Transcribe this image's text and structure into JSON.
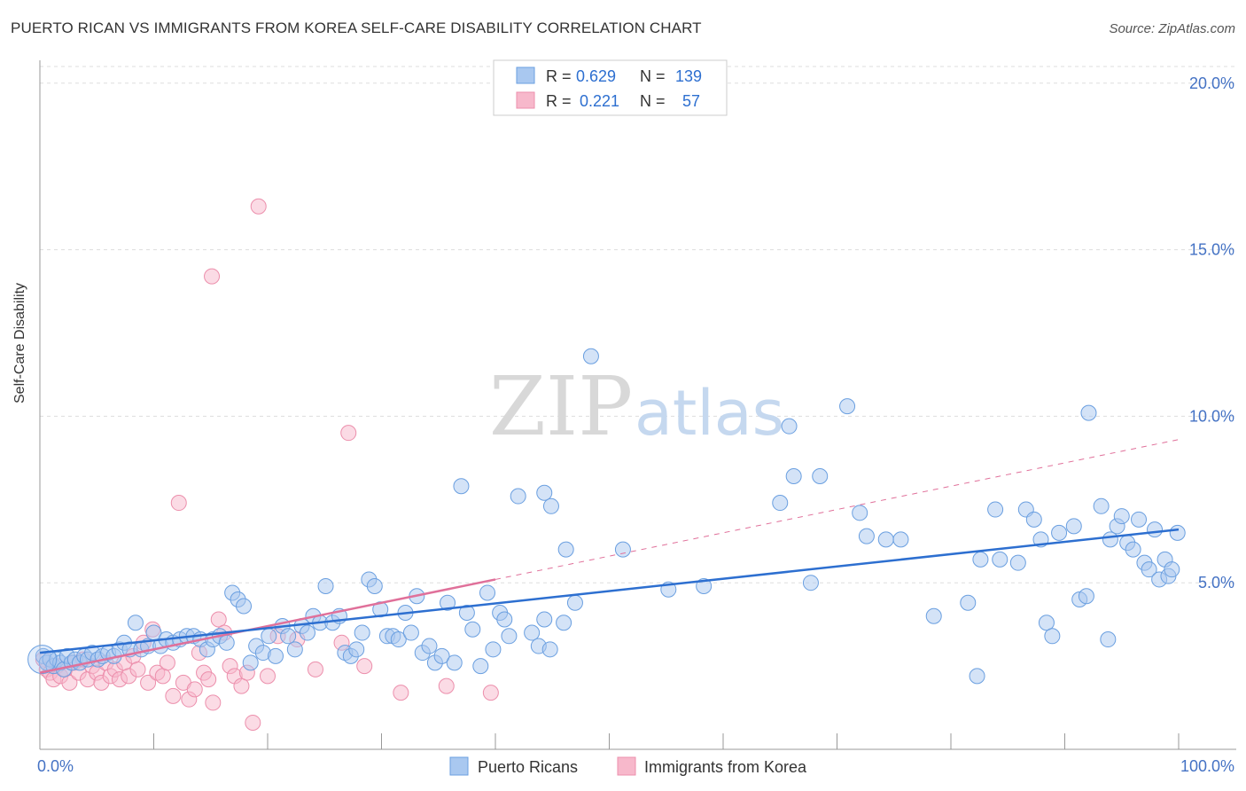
{
  "title": "PUERTO RICAN VS IMMIGRANTS FROM KOREA SELF-CARE DISABILITY CORRELATION CHART",
  "source": "Source: ZipAtlas.com",
  "watermark": {
    "part1": "ZIP",
    "part2": "atlas"
  },
  "colors": {
    "blue_fill": "#a9c8f0",
    "blue_stroke": "#6a9fe0",
    "blue_line": "#2d6fd0",
    "pink_fill": "#f7b8cb",
    "pink_stroke": "#ec8fac",
    "pink_line": "#e0709a",
    "grid": "#dddddd",
    "tick": "#4472c4"
  },
  "stats": {
    "r_label": "R =",
    "n_label": "N =",
    "rows": [
      {
        "series": "Puerto Ricans",
        "r": "0.629",
        "n": "139"
      },
      {
        "series": "Immigrants from Korea",
        "r": "0.221",
        "n": "57"
      }
    ]
  },
  "chart_data": {
    "type": "scatter",
    "title": "PUERTO RICAN VS IMMIGRANTS FROM KOREA SELF-CARE DISABILITY CORRELATION CHART",
    "xlabel": "",
    "ylabel": "Self-Care Disability",
    "xlim": [
      0,
      100
    ],
    "ylim": [
      0,
      20.5
    ],
    "x_tick_labels": [
      "0.0%",
      "100.0%"
    ],
    "y_ticks": [
      5,
      10,
      15,
      20
    ],
    "y_tick_labels": [
      "5.0%",
      "10.0%",
      "15.0%",
      "20.0%"
    ],
    "grid": true,
    "legend_position": "bottom",
    "series": [
      {
        "name": "Puerto Ricans",
        "color": "#a9c8f0",
        "trend": {
          "x": [
            0,
            100
          ],
          "y": [
            2.9,
            6.6
          ]
        },
        "points": [
          [
            0.3,
            2.8
          ],
          [
            0.6,
            2.6
          ],
          [
            0.9,
            2.7
          ],
          [
            1.2,
            2.5
          ],
          [
            1.5,
            2.7
          ],
          [
            1.8,
            2.6
          ],
          [
            2.1,
            2.4
          ],
          [
            2.4,
            2.8
          ],
          [
            2.8,
            2.6
          ],
          [
            3.1,
            2.7
          ],
          [
            3.5,
            2.6
          ],
          [
            3.9,
            2.8
          ],
          [
            4.2,
            2.7
          ],
          [
            4.6,
            2.9
          ],
          [
            5.1,
            2.7
          ],
          [
            5.5,
            2.8
          ],
          [
            6.0,
            2.9
          ],
          [
            6.5,
            2.8
          ],
          [
            7.0,
            3.0
          ],
          [
            7.4,
            3.2
          ],
          [
            7.9,
            3.0
          ],
          [
            8.4,
            3.8
          ],
          [
            8.9,
            3.0
          ],
          [
            9.5,
            3.1
          ],
          [
            10.0,
            3.5
          ],
          [
            10.6,
            3.1
          ],
          [
            11.1,
            3.3
          ],
          [
            11.7,
            3.2
          ],
          [
            12.3,
            3.3
          ],
          [
            12.9,
            3.4
          ],
          [
            13.5,
            3.4
          ],
          [
            14.1,
            3.3
          ],
          [
            14.7,
            3.0
          ],
          [
            15.2,
            3.3
          ],
          [
            15.8,
            3.4
          ],
          [
            16.4,
            3.2
          ],
          [
            16.9,
            4.7
          ],
          [
            17.4,
            4.5
          ],
          [
            17.9,
            4.3
          ],
          [
            18.5,
            2.6
          ],
          [
            19.0,
            3.1
          ],
          [
            19.6,
            2.9
          ],
          [
            20.1,
            3.4
          ],
          [
            20.7,
            2.8
          ],
          [
            21.3,
            3.7
          ],
          [
            21.8,
            3.4
          ],
          [
            22.4,
            3.0
          ],
          [
            23.0,
            3.7
          ],
          [
            23.5,
            3.5
          ],
          [
            24.0,
            4.0
          ],
          [
            24.6,
            3.8
          ],
          [
            25.1,
            4.9
          ],
          [
            25.7,
            3.8
          ],
          [
            26.3,
            4.0
          ],
          [
            26.8,
            2.9
          ],
          [
            27.3,
            2.8
          ],
          [
            27.8,
            3.0
          ],
          [
            28.3,
            3.5
          ],
          [
            28.9,
            5.1
          ],
          [
            29.4,
            4.9
          ],
          [
            29.9,
            4.2
          ],
          [
            30.5,
            3.4
          ],
          [
            31.0,
            3.4
          ],
          [
            31.5,
            3.3
          ],
          [
            32.1,
            4.1
          ],
          [
            32.6,
            3.5
          ],
          [
            33.1,
            4.6
          ],
          [
            33.6,
            2.9
          ],
          [
            34.2,
            3.1
          ],
          [
            34.7,
            2.6
          ],
          [
            35.3,
            2.8
          ],
          [
            35.8,
            4.4
          ],
          [
            36.4,
            2.6
          ],
          [
            37.0,
            7.9
          ],
          [
            37.5,
            4.1
          ],
          [
            38.0,
            3.6
          ],
          [
            38.7,
            2.5
          ],
          [
            39.3,
            4.7
          ],
          [
            39.8,
            3.0
          ],
          [
            40.4,
            4.1
          ],
          [
            40.8,
            3.9
          ],
          [
            41.2,
            3.4
          ],
          [
            42.0,
            7.6
          ],
          [
            43.2,
            3.5
          ],
          [
            43.8,
            3.1
          ],
          [
            44.3,
            3.9
          ],
          [
            44.8,
            3.0
          ],
          [
            44.3,
            7.7
          ],
          [
            44.9,
            7.3
          ],
          [
            46.2,
            6.0
          ],
          [
            47.0,
            4.4
          ],
          [
            46.0,
            3.8
          ],
          [
            48.4,
            11.8
          ],
          [
            51.2,
            6.0
          ],
          [
            55.2,
            4.8
          ],
          [
            58.3,
            4.9
          ],
          [
            65.0,
            7.4
          ],
          [
            65.8,
            9.7
          ],
          [
            66.2,
            8.2
          ],
          [
            68.5,
            8.2
          ],
          [
            67.7,
            5.0
          ],
          [
            70.9,
            10.3
          ],
          [
            72.0,
            7.1
          ],
          [
            72.6,
            6.4
          ],
          [
            74.3,
            6.3
          ],
          [
            75.6,
            6.3
          ],
          [
            78.5,
            4.0
          ],
          [
            81.5,
            4.4
          ],
          [
            82.6,
            5.7
          ],
          [
            82.3,
            2.2
          ],
          [
            83.9,
            7.2
          ],
          [
            84.3,
            5.7
          ],
          [
            85.9,
            5.6
          ],
          [
            86.6,
            7.2
          ],
          [
            87.3,
            6.9
          ],
          [
            87.9,
            6.3
          ],
          [
            88.4,
            3.8
          ],
          [
            88.9,
            3.4
          ],
          [
            89.5,
            6.5
          ],
          [
            90.8,
            6.7
          ],
          [
            91.3,
            4.5
          ],
          [
            91.9,
            4.6
          ],
          [
            92.1,
            10.1
          ],
          [
            93.2,
            7.3
          ],
          [
            93.8,
            3.3
          ],
          [
            94.0,
            6.3
          ],
          [
            94.6,
            6.7
          ],
          [
            95.0,
            7.0
          ],
          [
            95.5,
            6.2
          ],
          [
            96.0,
            6.0
          ],
          [
            96.5,
            6.9
          ],
          [
            97.0,
            5.6
          ],
          [
            97.4,
            5.4
          ],
          [
            97.9,
            6.6
          ],
          [
            98.3,
            5.1
          ],
          [
            98.8,
            5.7
          ],
          [
            99.1,
            5.2
          ],
          [
            99.4,
            5.4
          ],
          [
            99.9,
            6.5
          ]
        ]
      },
      {
        "name": "Immigrants from Korea",
        "color": "#f7b8cb",
        "trend": {
          "x": [
            0,
            40
          ],
          "y": [
            2.3,
            5.1
          ]
        },
        "trend_dashed": {
          "x": [
            40,
            100
          ],
          "y": [
            5.1,
            9.3
          ]
        },
        "points": [
          [
            0.3,
            2.7
          ],
          [
            0.6,
            2.4
          ],
          [
            0.9,
            2.3
          ],
          [
            1.2,
            2.1
          ],
          [
            1.5,
            2.5
          ],
          [
            1.8,
            2.2
          ],
          [
            2.2,
            2.4
          ],
          [
            2.6,
            2.0
          ],
          [
            3.0,
            2.6
          ],
          [
            3.4,
            2.3
          ],
          [
            3.8,
            2.7
          ],
          [
            4.2,
            2.1
          ],
          [
            4.6,
            2.5
          ],
          [
            5.0,
            2.3
          ],
          [
            5.4,
            2.0
          ],
          [
            5.8,
            2.6
          ],
          [
            6.2,
            2.2
          ],
          [
            6.6,
            2.4
          ],
          [
            7.0,
            2.1
          ],
          [
            7.4,
            2.6
          ],
          [
            7.8,
            2.2
          ],
          [
            8.2,
            2.8
          ],
          [
            8.6,
            2.4
          ],
          [
            9.1,
            3.2
          ],
          [
            9.5,
            2.0
          ],
          [
            9.9,
            3.6
          ],
          [
            10.3,
            2.3
          ],
          [
            10.8,
            2.2
          ],
          [
            11.2,
            2.6
          ],
          [
            11.7,
            1.6
          ],
          [
            12.2,
            7.4
          ],
          [
            12.6,
            2.0
          ],
          [
            13.1,
            1.5
          ],
          [
            13.6,
            1.8
          ],
          [
            14.0,
            2.9
          ],
          [
            14.4,
            2.3
          ],
          [
            14.8,
            2.1
          ],
          [
            15.2,
            1.4
          ],
          [
            15.7,
            3.9
          ],
          [
            16.2,
            3.5
          ],
          [
            16.7,
            2.5
          ],
          [
            17.1,
            2.2
          ],
          [
            17.7,
            1.9
          ],
          [
            18.2,
            2.3
          ],
          [
            18.7,
            0.8
          ],
          [
            19.2,
            16.3
          ],
          [
            20.0,
            2.2
          ],
          [
            20.9,
            3.4
          ],
          [
            22.6,
            3.3
          ],
          [
            24.2,
            2.4
          ],
          [
            26.5,
            3.2
          ],
          [
            27.1,
            9.5
          ],
          [
            28.5,
            2.5
          ],
          [
            31.7,
            1.7
          ],
          [
            35.7,
            1.9
          ],
          [
            39.6,
            1.7
          ],
          [
            15.1,
            14.2
          ]
        ]
      }
    ]
  },
  "legend": {
    "items": [
      {
        "label": "Puerto Ricans"
      },
      {
        "label": "Immigrants from Korea"
      }
    ]
  }
}
